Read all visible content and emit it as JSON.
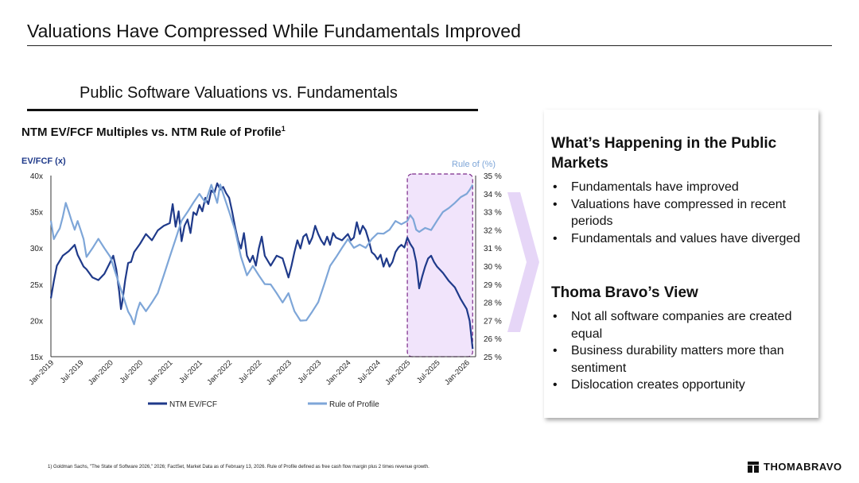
{
  "page": {
    "title": "Valuations Have Compressed While Fundamentals Improved",
    "subtitle": "Public Software Valuations vs. Fundamentals",
    "chart_heading": "NTM EV/FCF Multiples vs. NTM Rule of Profile",
    "chart_heading_sup": "1",
    "footnote": "1) Goldman Sachs, \"The State of Software 2026,\" 2026; FactSet, Market Data as of February 13, 2026. Rule of Profile defined as free cash flow margin plus 2 times revenue growth.",
    "logo_text": "THOMABRAVO"
  },
  "panel": {
    "heading1": "What’s Happening in the Public Markets",
    "bullets1": [
      "Fundamentals have improved",
      "Valuations have compressed in recent periods",
      "Fundamentals and values have diverged"
    ],
    "heading2": "Thoma Bravo’s View",
    "bullets2": [
      "Not all software companies are created equal",
      "Business durability matters more than sentiment",
      "Dislocation creates opportunity"
    ]
  },
  "colors": {
    "ntm_series": "#1f3a8a",
    "rule_series": "#7ea6d8",
    "highlight_fill": "#f1e4fb",
    "highlight_stroke": "#7b2a8a",
    "chevron": "#e6d6f7"
  },
  "chart_data": {
    "type": "line",
    "title": "NTM EV/FCF Multiples vs. NTM Rule of Profile",
    "ylabel": "EV/FCF (x)",
    "y2label": "Rule of (%)",
    "ylim": [
      15,
      40
    ],
    "y2lim": [
      25,
      35
    ],
    "yticks": [
      "40x",
      "35x",
      "30x",
      "25x",
      "20x",
      "15x"
    ],
    "y2ticks": [
      "35 %",
      "34 %",
      "33 %",
      "32 %",
      "31 %",
      "30 %",
      "29 %",
      "28 %",
      "27 %",
      "26 %",
      "25 %"
    ],
    "xlim": [
      2019.0,
      2026.15
    ],
    "x_ticks": [
      {
        "label": "Jan-2019",
        "x": 2019.0
      },
      {
        "label": "Jul-2019",
        "x": 2019.5
      },
      {
        "label": "Jan-2020",
        "x": 2020.0
      },
      {
        "label": "Jul-2020",
        "x": 2020.5
      },
      {
        "label": "Jan-2021",
        "x": 2021.0
      },
      {
        "label": "Jul-2021",
        "x": 2021.5
      },
      {
        "label": "Jan-2022",
        "x": 2022.0
      },
      {
        "label": "Jul-2022",
        "x": 2022.5
      },
      {
        "label": "Jan-2023",
        "x": 2023.0
      },
      {
        "label": "Jul-2023",
        "x": 2023.5
      },
      {
        "label": "Jan-2024",
        "x": 2024.0
      },
      {
        "label": "Jul-2024",
        "x": 2024.5
      },
      {
        "label": "Jan-2025",
        "x": 2025.0
      },
      {
        "label": "Jul-2025",
        "x": 2025.5
      },
      {
        "label": "Jan-2026",
        "x": 2026.0
      }
    ],
    "highlight_range": [
      2025.0,
      2026.1
    ],
    "series": [
      {
        "name": "NTM EV/FCF",
        "axis": "left",
        "points": [
          [
            2019.0,
            23.0
          ],
          [
            2019.05,
            25.5
          ],
          [
            2019.1,
            27.5
          ],
          [
            2019.2,
            29.0
          ],
          [
            2019.3,
            29.5
          ],
          [
            2019.4,
            30.5
          ],
          [
            2019.45,
            29.0
          ],
          [
            2019.55,
            27.5
          ],
          [
            2019.6,
            27.0
          ],
          [
            2019.7,
            26.0
          ],
          [
            2019.8,
            25.5
          ],
          [
            2019.9,
            26.5
          ],
          [
            2020.0,
            28.0
          ],
          [
            2020.05,
            29.0
          ],
          [
            2020.1,
            27.0
          ],
          [
            2020.15,
            24.0
          ],
          [
            2020.18,
            21.5
          ],
          [
            2020.2,
            22.5
          ],
          [
            2020.25,
            25.5
          ],
          [
            2020.3,
            28.0
          ],
          [
            2020.35,
            28.0
          ],
          [
            2020.4,
            29.5
          ],
          [
            2020.5,
            30.5
          ],
          [
            2020.6,
            32.0
          ],
          [
            2020.7,
            31.0
          ],
          [
            2020.8,
            32.5
          ],
          [
            2020.9,
            33.0
          ],
          [
            2021.0,
            33.5
          ],
          [
            2021.05,
            36.0
          ],
          [
            2021.1,
            33.0
          ],
          [
            2021.15,
            35.0
          ],
          [
            2021.2,
            31.0
          ],
          [
            2021.25,
            33.0
          ],
          [
            2021.3,
            34.0
          ],
          [
            2021.35,
            32.0
          ],
          [
            2021.4,
            35.0
          ],
          [
            2021.45,
            34.5
          ],
          [
            2021.5,
            36.0
          ],
          [
            2021.55,
            35.0
          ],
          [
            2021.6,
            37.0
          ],
          [
            2021.65,
            36.0
          ],
          [
            2021.7,
            38.0
          ],
          [
            2021.75,
            37.5
          ],
          [
            2021.8,
            39.0
          ],
          [
            2021.85,
            38.0
          ],
          [
            2021.9,
            38.5
          ],
          [
            2021.95,
            37.5
          ],
          [
            2022.0,
            37.0
          ],
          [
            2022.05,
            35.0
          ],
          [
            2022.1,
            33.0
          ],
          [
            2022.15,
            31.0
          ],
          [
            2022.2,
            30.0
          ],
          [
            2022.25,
            32.0
          ],
          [
            2022.3,
            29.0
          ],
          [
            2022.35,
            28.0
          ],
          [
            2022.4,
            29.0
          ],
          [
            2022.45,
            27.5
          ],
          [
            2022.5,
            30.0
          ],
          [
            2022.55,
            31.5
          ],
          [
            2022.6,
            29.0
          ],
          [
            2022.7,
            27.5
          ],
          [
            2022.8,
            29.0
          ],
          [
            2022.9,
            28.5
          ],
          [
            2023.0,
            26.0
          ],
          [
            2023.05,
            27.5
          ],
          [
            2023.1,
            29.5
          ],
          [
            2023.15,
            31.0
          ],
          [
            2023.2,
            30.0
          ],
          [
            2023.25,
            31.5
          ],
          [
            2023.3,
            32.0
          ],
          [
            2023.35,
            30.5
          ],
          [
            2023.4,
            31.5
          ],
          [
            2023.45,
            33.0
          ],
          [
            2023.5,
            32.0
          ],
          [
            2023.55,
            31.0
          ],
          [
            2023.6,
            30.5
          ],
          [
            2023.65,
            31.5
          ],
          [
            2023.7,
            30.5
          ],
          [
            2023.75,
            32.0
          ],
          [
            2023.8,
            31.5
          ],
          [
            2023.9,
            31.0
          ],
          [
            2024.0,
            32.0
          ],
          [
            2024.05,
            31.0
          ],
          [
            2024.1,
            31.5
          ],
          [
            2024.15,
            33.5
          ],
          [
            2024.2,
            32.0
          ],
          [
            2024.25,
            33.0
          ],
          [
            2024.3,
            32.5
          ],
          [
            2024.35,
            31.0
          ],
          [
            2024.4,
            29.5
          ],
          [
            2024.45,
            29.0
          ],
          [
            2024.5,
            28.5
          ],
          [
            2024.55,
            29.0
          ],
          [
            2024.6,
            27.5
          ],
          [
            2024.65,
            28.5
          ],
          [
            2024.7,
            27.5
          ],
          [
            2024.75,
            28.0
          ],
          [
            2024.8,
            29.5
          ],
          [
            2024.85,
            30.0
          ],
          [
            2024.9,
            30.5
          ],
          [
            2024.95,
            30.0
          ],
          [
            2025.0,
            31.5
          ],
          [
            2025.05,
            30.5
          ],
          [
            2025.1,
            30.0
          ],
          [
            2025.15,
            28.0
          ],
          [
            2025.2,
            24.5
          ],
          [
            2025.25,
            26.0
          ],
          [
            2025.3,
            27.5
          ],
          [
            2025.35,
            28.5
          ],
          [
            2025.4,
            29.0
          ],
          [
            2025.45,
            28.0
          ],
          [
            2025.5,
            27.5
          ],
          [
            2025.6,
            26.5
          ],
          [
            2025.7,
            25.5
          ],
          [
            2025.8,
            24.5
          ],
          [
            2025.9,
            23.0
          ],
          [
            2026.0,
            21.5
          ],
          [
            2026.05,
            20.0
          ],
          [
            2026.1,
            16.0
          ]
        ]
      },
      {
        "name": "Rule of Profile",
        "axis": "right",
        "points": [
          [
            2019.0,
            32.5
          ],
          [
            2019.05,
            31.5
          ],
          [
            2019.1,
            31.8
          ],
          [
            2019.15,
            32.1
          ],
          [
            2019.2,
            32.7
          ],
          [
            2019.25,
            33.5
          ],
          [
            2019.3,
            33.0
          ],
          [
            2019.35,
            32.5
          ],
          [
            2019.4,
            32.0
          ],
          [
            2019.45,
            32.5
          ],
          [
            2019.5,
            32.0
          ],
          [
            2019.55,
            31.5
          ],
          [
            2019.6,
            30.5
          ],
          [
            2019.7,
            31.0
          ],
          [
            2019.8,
            31.5
          ],
          [
            2019.9,
            31.0
          ],
          [
            2020.0,
            30.5
          ],
          [
            2020.1,
            29.5
          ],
          [
            2020.2,
            28.5
          ],
          [
            2020.3,
            27.5
          ],
          [
            2020.35,
            27.2
          ],
          [
            2020.4,
            26.8
          ],
          [
            2020.45,
            27.5
          ],
          [
            2020.5,
            28.0
          ],
          [
            2020.6,
            27.5
          ],
          [
            2020.7,
            28.0
          ],
          [
            2020.8,
            28.5
          ],
          [
            2020.9,
            29.5
          ],
          [
            2021.0,
            30.5
          ],
          [
            2021.1,
            31.5
          ],
          [
            2021.2,
            32.5
          ],
          [
            2021.3,
            33.0
          ],
          [
            2021.4,
            33.5
          ],
          [
            2021.5,
            34.0
          ],
          [
            2021.6,
            33.5
          ],
          [
            2021.7,
            34.5
          ],
          [
            2021.75,
            34.0
          ],
          [
            2021.8,
            33.5
          ],
          [
            2021.85,
            34.5
          ],
          [
            2021.9,
            34.0
          ],
          [
            2022.0,
            33.0
          ],
          [
            2022.1,
            32.0
          ],
          [
            2022.2,
            30.5
          ],
          [
            2022.3,
            29.5
          ],
          [
            2022.4,
            30.0
          ],
          [
            2022.5,
            29.5
          ],
          [
            2022.6,
            29.0
          ],
          [
            2022.7,
            29.0
          ],
          [
            2022.8,
            28.5
          ],
          [
            2022.9,
            28.0
          ],
          [
            2023.0,
            28.5
          ],
          [
            2023.05,
            28.0
          ],
          [
            2023.1,
            27.5
          ],
          [
            2023.2,
            27.0
          ],
          [
            2023.3,
            27.0
          ],
          [
            2023.4,
            27.5
          ],
          [
            2023.5,
            28.0
          ],
          [
            2023.6,
            29.0
          ],
          [
            2023.7,
            30.0
          ],
          [
            2023.8,
            30.5
          ],
          [
            2023.9,
            31.0
          ],
          [
            2024.0,
            31.5
          ],
          [
            2024.1,
            31.0
          ],
          [
            2024.2,
            31.2
          ],
          [
            2024.3,
            31.0
          ],
          [
            2024.4,
            31.5
          ],
          [
            2024.5,
            31.8
          ],
          [
            2024.6,
            31.8
          ],
          [
            2024.7,
            32.0
          ],
          [
            2024.8,
            32.5
          ],
          [
            2024.9,
            32.3
          ],
          [
            2025.0,
            32.5
          ],
          [
            2025.05,
            32.8
          ],
          [
            2025.1,
            32.6
          ],
          [
            2025.15,
            32.0
          ],
          [
            2025.2,
            31.9
          ],
          [
            2025.3,
            32.1
          ],
          [
            2025.4,
            32.0
          ],
          [
            2025.5,
            32.5
          ],
          [
            2025.6,
            33.0
          ],
          [
            2025.7,
            33.2
          ],
          [
            2025.8,
            33.5
          ],
          [
            2025.9,
            33.8
          ],
          [
            2026.0,
            34.0
          ],
          [
            2026.05,
            34.2
          ],
          [
            2026.1,
            34.5
          ]
        ]
      }
    ],
    "legend": [
      "NTM EV/FCF",
      "Rule of Profile"
    ],
    "legend_position": "bottom"
  }
}
